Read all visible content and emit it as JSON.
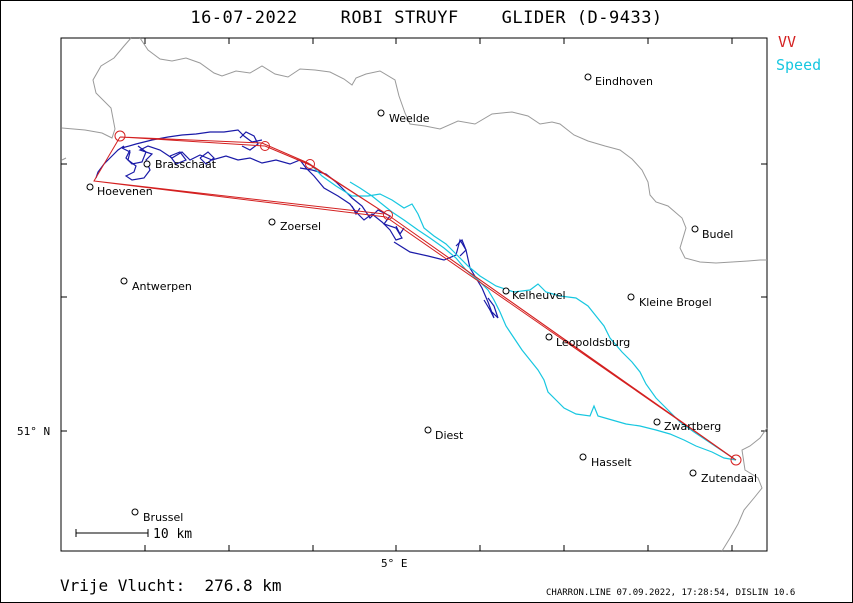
{
  "header": {
    "title": "16-07-2022    ROBI STRUYF    GLIDER (D-9433)"
  },
  "legend": {
    "route": {
      "label": "VV",
      "color": "#d42020"
    },
    "speed": {
      "label": "Speed",
      "color": "#17c7e0"
    }
  },
  "map": {
    "track_color": "#1a1aa8",
    "border_color": "#9a9a9a",
    "latitude_label": "51° N",
    "longitude_label": "5° E",
    "scale_label": "10 km",
    "cities": [
      {
        "name": "Eindhoven"
      },
      {
        "name": "Weelde"
      },
      {
        "name": "Brasschaat"
      },
      {
        "name": "Hoevenen"
      },
      {
        "name": "Zoersel"
      },
      {
        "name": "Budel"
      },
      {
        "name": "Antwerpen"
      },
      {
        "name": "Kelheuvel"
      },
      {
        "name": "Kleine Brogel"
      },
      {
        "name": "Leopoldsburg"
      },
      {
        "name": "Zwartberg"
      },
      {
        "name": "Diest"
      },
      {
        "name": "Hasselt"
      },
      {
        "name": "Zutendaal"
      },
      {
        "name": "Brussel"
      }
    ]
  },
  "footer": {
    "distance": "Vrije Vlucht:  276.8 km",
    "credits": "CHARRON.LINE 07.09.2022, 17:28:54, DISLIN 10.6"
  }
}
